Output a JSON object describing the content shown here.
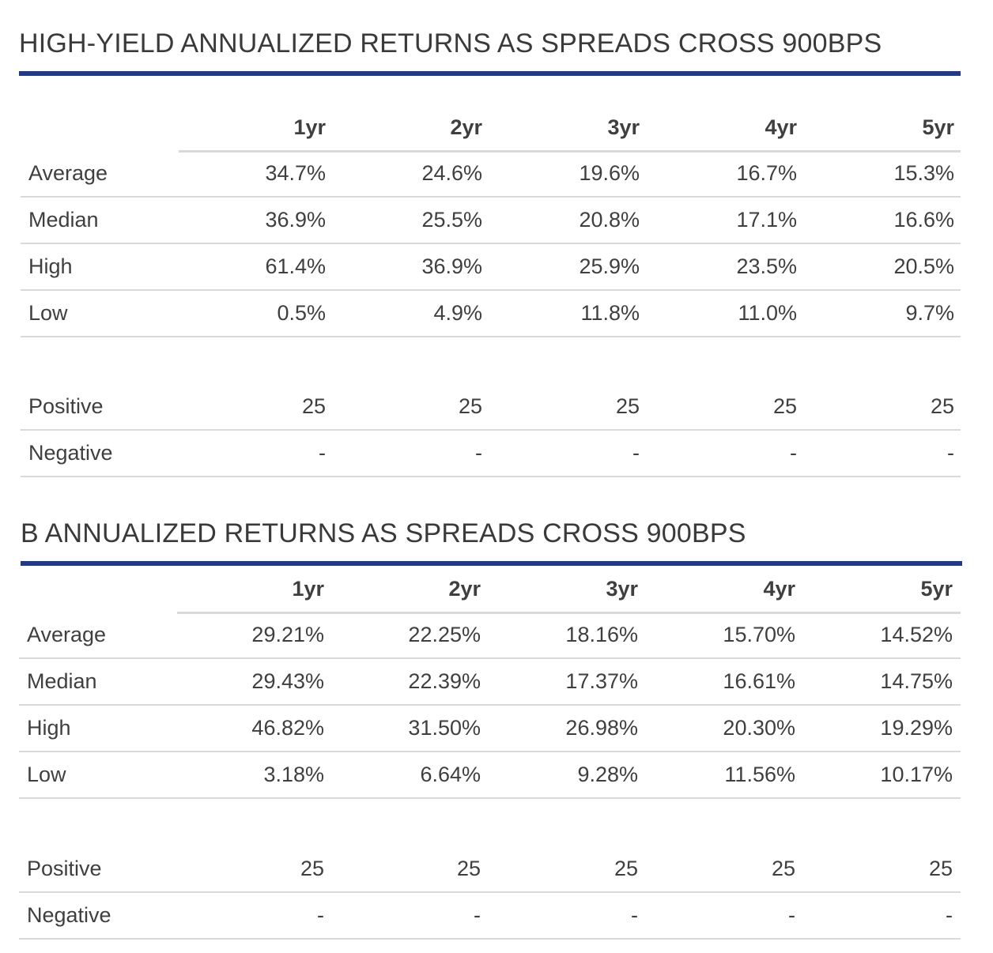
{
  "tables": [
    {
      "title": "HIGH-YIELD ANNUALIZED RETURNS AS SPREADS CROSS 900BPS",
      "columns": [
        "1yr",
        "2yr",
        "3yr",
        "4yr",
        "5yr"
      ],
      "rows": [
        {
          "label": "Average",
          "values": [
            "34.7%",
            "24.6%",
            "19.6%",
            "16.7%",
            "15.3%"
          ]
        },
        {
          "label": "Median",
          "values": [
            "36.9%",
            "25.5%",
            "20.8%",
            "17.1%",
            "16.6%"
          ]
        },
        {
          "label": "High",
          "values": [
            "61.4%",
            "36.9%",
            "25.9%",
            "23.5%",
            "20.5%"
          ]
        },
        {
          "label": "Low",
          "values": [
            "0.5%",
            "4.9%",
            "11.8%",
            "11.0%",
            "9.7%"
          ]
        }
      ],
      "count_rows": [
        {
          "label": "Positive",
          "values": [
            "25",
            "25",
            "25",
            "25",
            "25"
          ]
        },
        {
          "label": "Negative",
          "values": [
            "-",
            "-",
            "-",
            "-",
            "-"
          ]
        }
      ]
    },
    {
      "title": "B ANNUALIZED RETURNS AS SPREADS CROSS 900BPS",
      "columns": [
        "1yr",
        "2yr",
        "3yr",
        "4yr",
        "5yr"
      ],
      "rows": [
        {
          "label": "Average",
          "values": [
            "29.21%",
            "22.25%",
            "18.16%",
            "15.70%",
            "14.52%"
          ]
        },
        {
          "label": "Median",
          "values": [
            "29.43%",
            "22.39%",
            "17.37%",
            "16.61%",
            "14.75%"
          ]
        },
        {
          "label": "High",
          "values": [
            "46.82%",
            "31.50%",
            "26.98%",
            "20.30%",
            "19.29%"
          ]
        },
        {
          "label": "Low",
          "values": [
            "3.18%",
            "6.64%",
            "9.28%",
            "11.56%",
            "10.17%"
          ]
        }
      ],
      "count_rows": [
        {
          "label": "Positive",
          "values": [
            "25",
            "25",
            "25",
            "25",
            "25"
          ]
        },
        {
          "label": "Negative",
          "values": [
            "-",
            "-",
            "-",
            "-",
            "-"
          ]
        }
      ]
    }
  ],
  "colors": {
    "accent_rule": "#1f3a8a",
    "divider": "#d9d9d9",
    "text": "#3f3f3f"
  }
}
